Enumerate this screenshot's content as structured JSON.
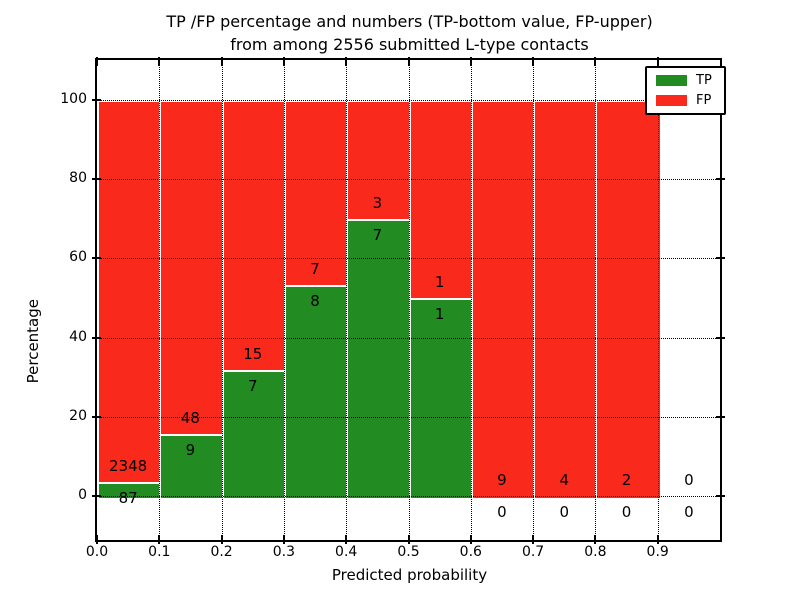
{
  "title": {
    "line1": "TP /FP percentage and numbers (TP-bottom value, FP-upper)",
    "line2": "from among 2556 submitted L-type contacts"
  },
  "chart_data": {
    "type": "bar",
    "stacked": true,
    "title": "TP /FP percentage and numbers (TP-bottom value, FP-upper) from among 2556 submitted L-type contacts",
    "xlabel": "Predicted probability",
    "ylabel": "Percentage",
    "total_contacts": 2556,
    "xlim": [
      0.0,
      1.0
    ],
    "ylim": [
      -11,
      110
    ],
    "bin_width": 0.1,
    "x_ticks": [
      "0.0",
      "0.1",
      "0.2",
      "0.3",
      "0.4",
      "0.5",
      "0.6",
      "0.7",
      "0.8",
      "0.9"
    ],
    "y_ticks": [
      0,
      20,
      40,
      60,
      80,
      100
    ],
    "grid": "dotted",
    "legend_position": "upper right",
    "bins": [
      {
        "range": "0.0-0.1",
        "tp": 87,
        "fp": 2348,
        "tp_percent": 3.57
      },
      {
        "range": "0.1-0.2",
        "tp": 9,
        "fp": 48,
        "tp_percent": 15.79
      },
      {
        "range": "0.2-0.3",
        "tp": 7,
        "fp": 15,
        "tp_percent": 31.82
      },
      {
        "range": "0.3-0.4",
        "tp": 8,
        "fp": 7,
        "tp_percent": 53.33
      },
      {
        "range": "0.4-0.5",
        "tp": 7,
        "fp": 3,
        "tp_percent": 70.0
      },
      {
        "range": "0.5-0.6",
        "tp": 1,
        "fp": 1,
        "tp_percent": 50.0
      },
      {
        "range": "0.6-0.7",
        "tp": 0,
        "fp": 9,
        "tp_percent": 0.0
      },
      {
        "range": "0.7-0.8",
        "tp": 0,
        "fp": 4,
        "tp_percent": 0.0
      },
      {
        "range": "0.8-0.9",
        "tp": 0,
        "fp": 2,
        "tp_percent": 0.0
      },
      {
        "range": "0.9-1.0",
        "tp": 0,
        "fp": 0,
        "tp_percent": null
      }
    ],
    "legend": [
      {
        "label": "TP",
        "color": "#228B22"
      },
      {
        "label": "FP",
        "color": "#F9291C"
      }
    ]
  }
}
